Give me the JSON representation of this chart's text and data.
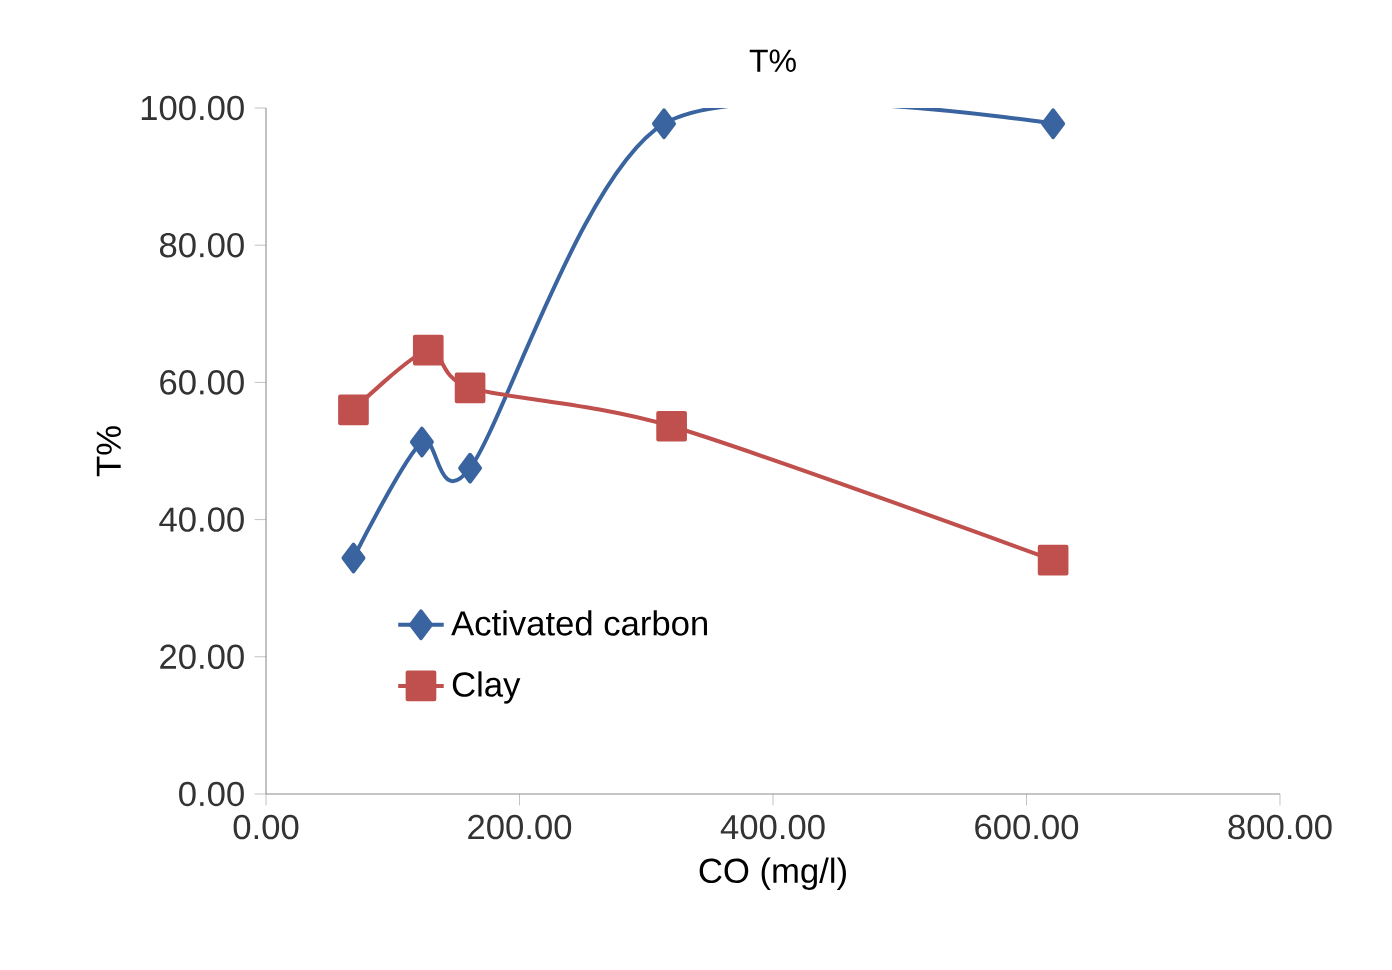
{
  "chart_data": {
    "type": "line",
    "title": "T%",
    "xlabel": "CO (mg/l)",
    "ylabel": "T%",
    "xlim": [
      0,
      800
    ],
    "ylim": [
      0,
      100
    ],
    "xticks": [
      {
        "value": 0,
        "label": "0.00"
      },
      {
        "value": 200,
        "label": "200.00"
      },
      {
        "value": 400,
        "label": "400.00"
      },
      {
        "value": 600,
        "label": "600.00"
      },
      {
        "value": 800,
        "label": "800.00"
      }
    ],
    "yticks": [
      {
        "value": 0,
        "label": "0.00"
      },
      {
        "value": 20,
        "label": "20.00"
      },
      {
        "value": 40,
        "label": "40.00"
      },
      {
        "value": 60,
        "label": "60.00"
      },
      {
        "value": 80,
        "label": "80.00"
      },
      {
        "value": 100,
        "label": "100.00"
      }
    ],
    "legend": "bottom left",
    "grid": false,
    "series": [
      {
        "name": "Activated carbon",
        "color": "#3a64a0",
        "marker": "diamond",
        "x": [
          69,
          123,
          161,
          314,
          621
        ],
        "values": [
          34.4,
          51.3,
          47.5,
          97.7,
          97.7
        ]
      },
      {
        "name": "Clay",
        "color": "#c0504d",
        "marker": "square",
        "x": [
          69,
          128,
          161,
          320,
          621
        ],
        "values": [
          56,
          64.7,
          59.2,
          53.6,
          34.1
        ]
      }
    ]
  }
}
